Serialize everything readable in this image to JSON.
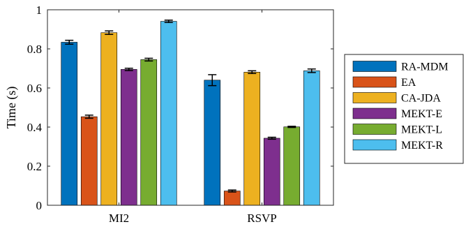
{
  "chart_data": {
    "type": "bar",
    "title": "",
    "xlabel": "",
    "ylabel": "Time (s)",
    "ylim": [
      0,
      1
    ],
    "yticks": [
      "0",
      "0.2",
      "0.4",
      "0.6",
      "0.8",
      "1"
    ],
    "grid": false,
    "legend_position": "right",
    "categories": [
      "MI2",
      "RSVP"
    ],
    "series": [
      {
        "name": "RA-MDM",
        "color": "#0072BD",
        "values": [
          0.834,
          0.64
        ],
        "errors": [
          0.01,
          0.028
        ]
      },
      {
        "name": "EA",
        "color": "#D95319",
        "values": [
          0.453,
          0.073
        ],
        "errors": [
          0.008,
          0.005
        ]
      },
      {
        "name": "CA-JDA",
        "color": "#EDB120",
        "values": [
          0.883,
          0.681
        ],
        "errors": [
          0.009,
          0.007
        ]
      },
      {
        "name": "MEKT-E",
        "color": "#7E2F8E",
        "values": [
          0.695,
          0.343
        ],
        "errors": [
          0.006,
          0.005
        ]
      },
      {
        "name": "MEKT-L",
        "color": "#77AC30",
        "values": [
          0.745,
          0.401
        ],
        "errors": [
          0.007,
          0.003
        ]
      },
      {
        "name": "MEKT-R",
        "color": "#4DBEEE",
        "values": [
          0.941,
          0.688
        ],
        "errors": [
          0.006,
          0.009
        ]
      }
    ]
  }
}
